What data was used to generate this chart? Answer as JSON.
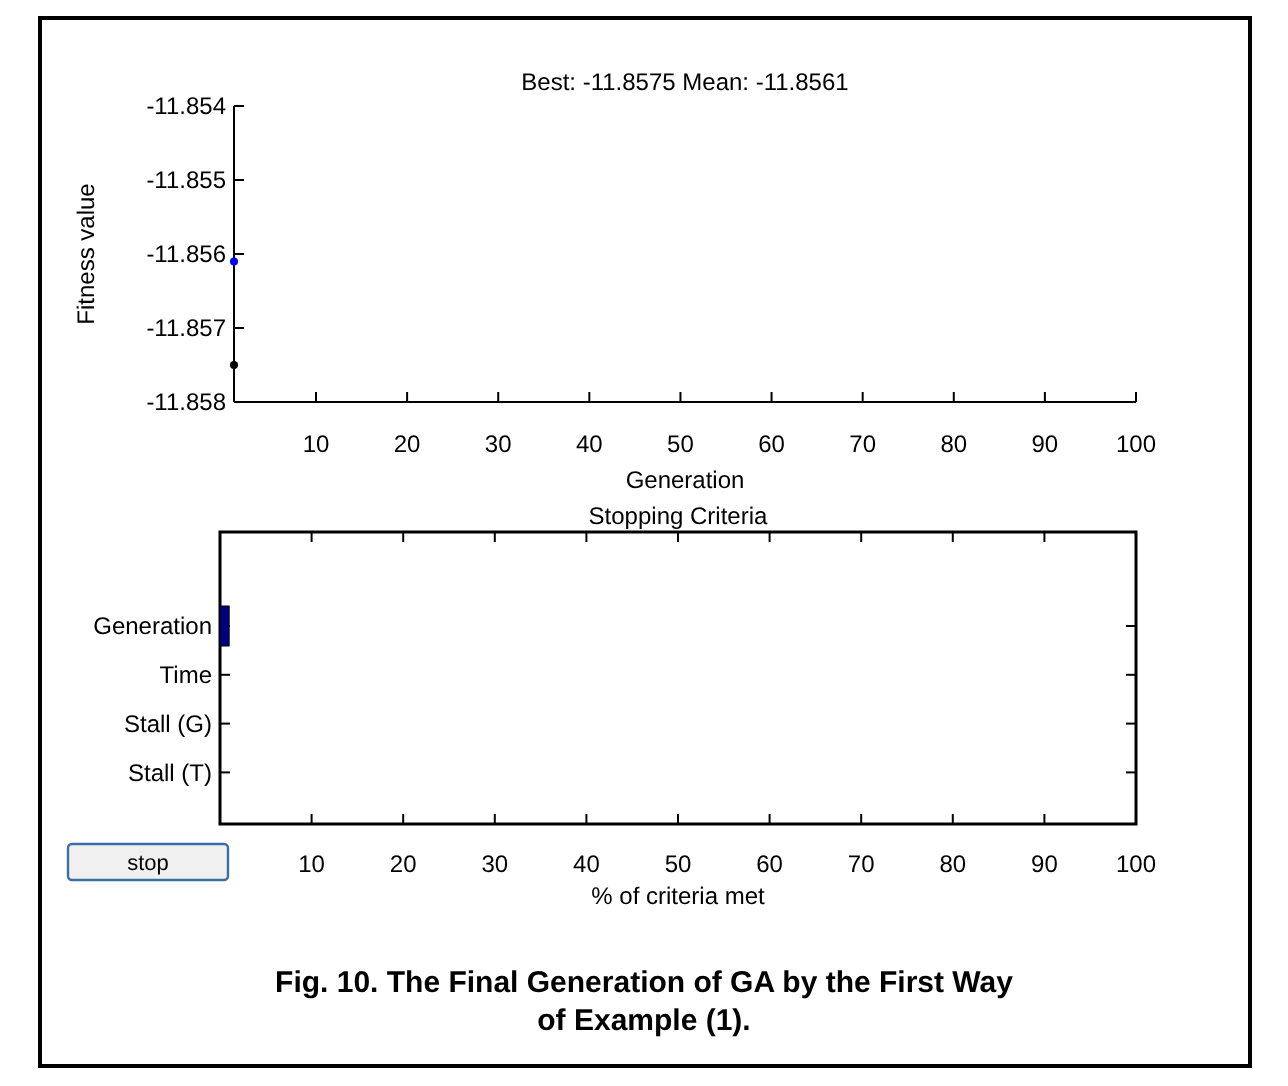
{
  "chart_data": [
    {
      "type": "scatter",
      "title": "Best: -11.8575 Mean: -11.8561",
      "xlabel": "Generation",
      "ylabel": "Fitness value",
      "x": [
        1
      ],
      "xlim": [
        1,
        100
      ],
      "xticks": [
        10,
        20,
        30,
        40,
        50,
        60,
        70,
        80,
        90,
        100
      ],
      "ylim": [
        -11.858,
        -11.854
      ],
      "yticks": [
        -11.858,
        -11.857,
        -11.856,
        -11.855,
        -11.854
      ],
      "marker": "circle",
      "grid": false,
      "series": [
        {
          "color": "#000000",
          "values": [
            -11.8575
          ]
        },
        {
          "color": "#0000ff",
          "values": [
            -11.8561
          ]
        }
      ]
    },
    {
      "type": "bar",
      "orientation": "horizontal",
      "title": "Stopping Criteria",
      "xlabel": "% of criteria met",
      "categories": [
        "Generation",
        "Time",
        "Stall (G)",
        "Stall (T)"
      ],
      "values": [
        1,
        0,
        0,
        0
      ],
      "color": "#000080",
      "xlim": [
        0,
        100
      ],
      "xticks": [
        10,
        20,
        30,
        40,
        50,
        60,
        70,
        80,
        90,
        100
      ],
      "grid": false,
      "annotations": [
        "stop",
        "Fig. 10. The Final Generation of GA by the First Way of Example (1)."
      ]
    }
  ]
}
